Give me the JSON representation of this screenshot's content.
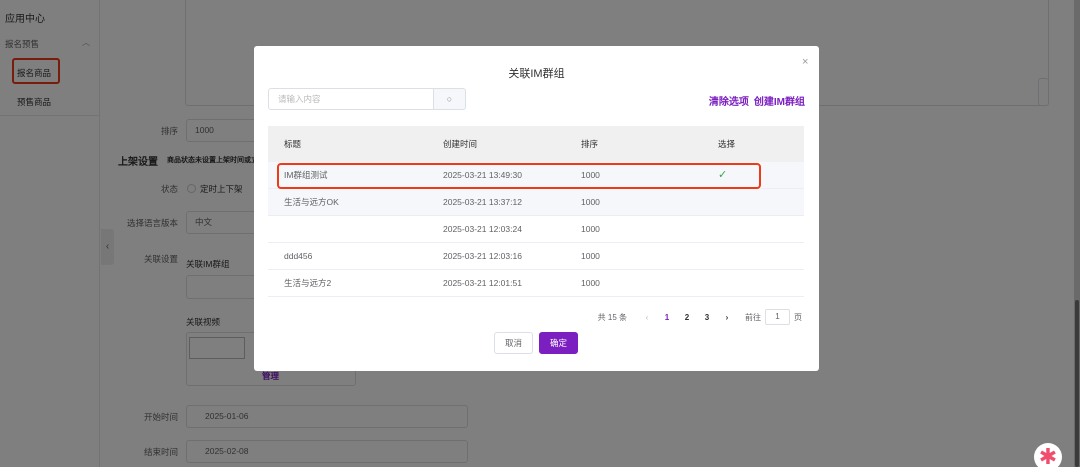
{
  "sidebar": {
    "title": "应用中心",
    "group": "报名预售",
    "items": [
      {
        "label": "报名商品",
        "highlighted": true
      },
      {
        "label": "预售商品"
      }
    ]
  },
  "form": {
    "sort_label": "排序",
    "sort_value": "1000",
    "section_title": "上架设置",
    "section_note": "商品状态未设置上架时间或立",
    "status_label": "状态",
    "status_option": "定时上下架",
    "lang_label": "选择语言版本",
    "lang_value": "中文",
    "relation_label": "关联设置",
    "im_label": "关联IM群组",
    "video_label": "关联视频",
    "video_manage": "管理",
    "start_label": "开始时间",
    "start_value": "2025-01-06",
    "end_label": "结束时间",
    "end_value": "2025-02-08"
  },
  "modal": {
    "title": "关联IM群组",
    "search_placeholder": "请输入内容",
    "clear_link": "清除选项",
    "create_link": "创建IM群组",
    "columns": [
      "标题",
      "创建时间",
      "排序",
      "选择"
    ],
    "rows": [
      {
        "title": "IM群组测试",
        "created": "2025-03-21 13:49:30",
        "sort": "1000",
        "selected": true,
        "check": "✓"
      },
      {
        "title": "生活与远方OK",
        "created": "2025-03-21 13:37:12",
        "sort": "1000",
        "selected": false
      },
      {
        "title": "",
        "created": "2025-03-21 12:03:24",
        "sort": "1000",
        "selected": false
      },
      {
        "title": "ddd456",
        "created": "2025-03-21 12:03:16",
        "sort": "1000",
        "selected": false
      },
      {
        "title": "生活与远方2",
        "created": "2025-03-21 12:01:51",
        "sort": "1000",
        "selected": false
      }
    ],
    "pagination": {
      "total": "共 15 条",
      "pages": [
        "1",
        "2",
        "3"
      ],
      "current": "1",
      "goto_label": "前往",
      "goto_value": "1",
      "page_unit": "页"
    },
    "cancel": "取消",
    "confirm": "确定"
  },
  "colors": {
    "accent": "#7b1fc0",
    "highlight": "#f03a17",
    "check": "#3aa64a"
  }
}
